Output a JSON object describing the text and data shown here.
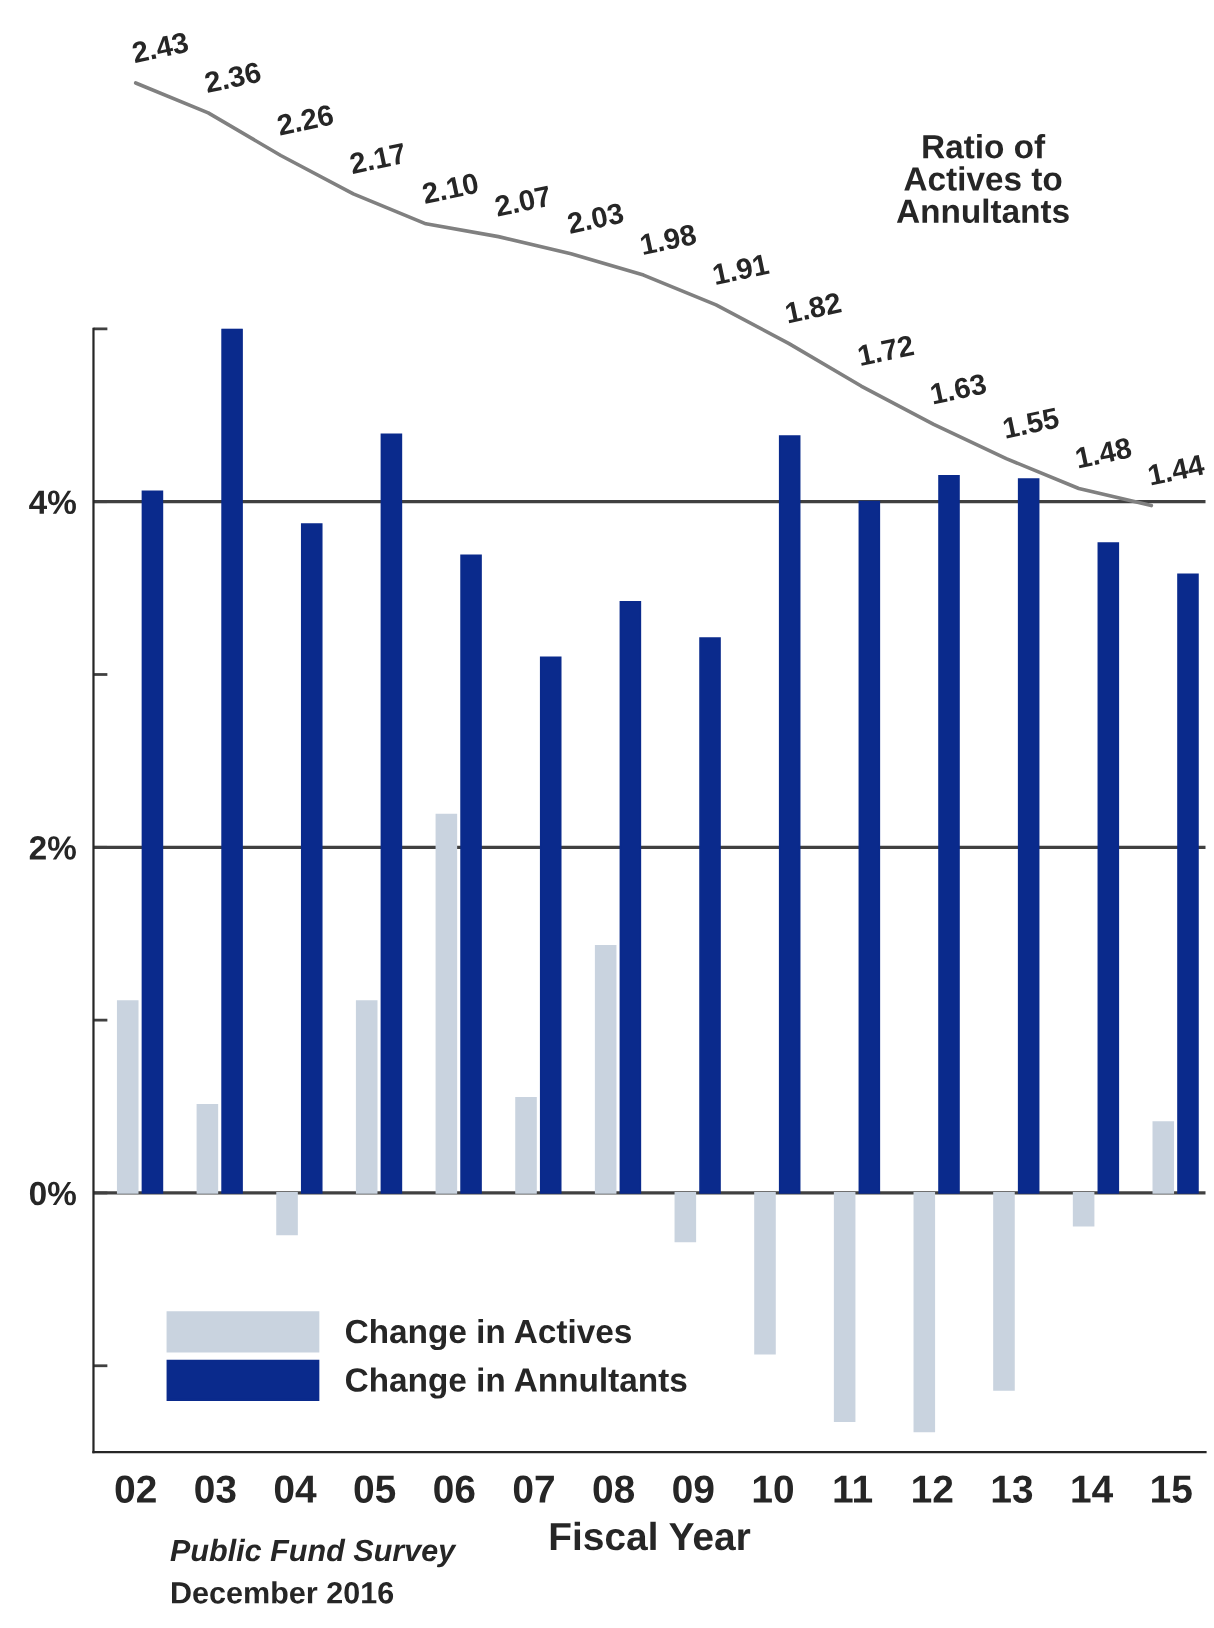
{
  "chart_data": [
    {
      "type": "bar",
      "xlabel": "Fiscal Year",
      "categories": [
        "02",
        "03",
        "04",
        "05",
        "06",
        "07",
        "08",
        "09",
        "10",
        "11",
        "12",
        "13",
        "14",
        "15"
      ],
      "series": [
        {
          "name": "Change in Actives",
          "color": "#c9d3df",
          "values": [
            1.11,
            0.51,
            -0.24,
            1.11,
            2.19,
            0.55,
            1.43,
            -0.28,
            -0.93,
            -1.32,
            -1.38,
            -1.14,
            -0.19,
            0.41
          ]
        },
        {
          "name": "Change in Annultants",
          "color": "#0a2a8c",
          "values": [
            4.06,
            5.0,
            3.87,
            4.39,
            3.69,
            3.1,
            3.42,
            3.21,
            4.38,
            4.0,
            4.15,
            4.13,
            3.76,
            3.58
          ]
        }
      ],
      "ylim": [
        -1.5,
        5
      ],
      "yticks": [
        {
          "value": -1,
          "label": null
        },
        {
          "value": 0,
          "label": "0%"
        },
        {
          "value": 1,
          "label": null
        },
        {
          "value": 2,
          "label": "2%"
        },
        {
          "value": 3,
          "label": null
        },
        {
          "value": 4,
          "label": "4%"
        },
        {
          "value": 5,
          "label": null
        }
      ],
      "ref_lines": [
        {
          "axis": "y",
          "value": 0,
          "color": "#404040"
        },
        {
          "axis": "y",
          "value": 2,
          "color": "#404040"
        },
        {
          "axis": "y",
          "value": 4,
          "color": "#404040"
        }
      ],
      "legend": "bottom left",
      "annotations": [
        "Public Fund Survey",
        "December 2016"
      ]
    },
    {
      "type": "line",
      "categories": [
        null,
        null,
        null,
        null,
        null,
        null,
        null,
        null,
        null,
        null,
        null,
        null,
        null,
        null,
        null
      ],
      "series": [
        {
          "name": "Ratio of\nActives to\nAnnultants",
          "color": "#808080",
          "values": [
            2.43,
            2.36,
            2.26,
            2.17,
            2.1,
            2.07,
            2.03,
            1.98,
            1.91,
            1.82,
            1.72,
            1.63,
            1.55,
            1.48,
            1.44
          ],
          "value_labels": [
            "2.43",
            "2.36",
            "2.26",
            "2.17",
            "2.10",
            "2.07",
            "2.03",
            "1.98",
            "1.91",
            "1.82",
            "1.72",
            "1.63",
            "1.55",
            "1.48",
            "1.44"
          ]
        }
      ]
    }
  ]
}
